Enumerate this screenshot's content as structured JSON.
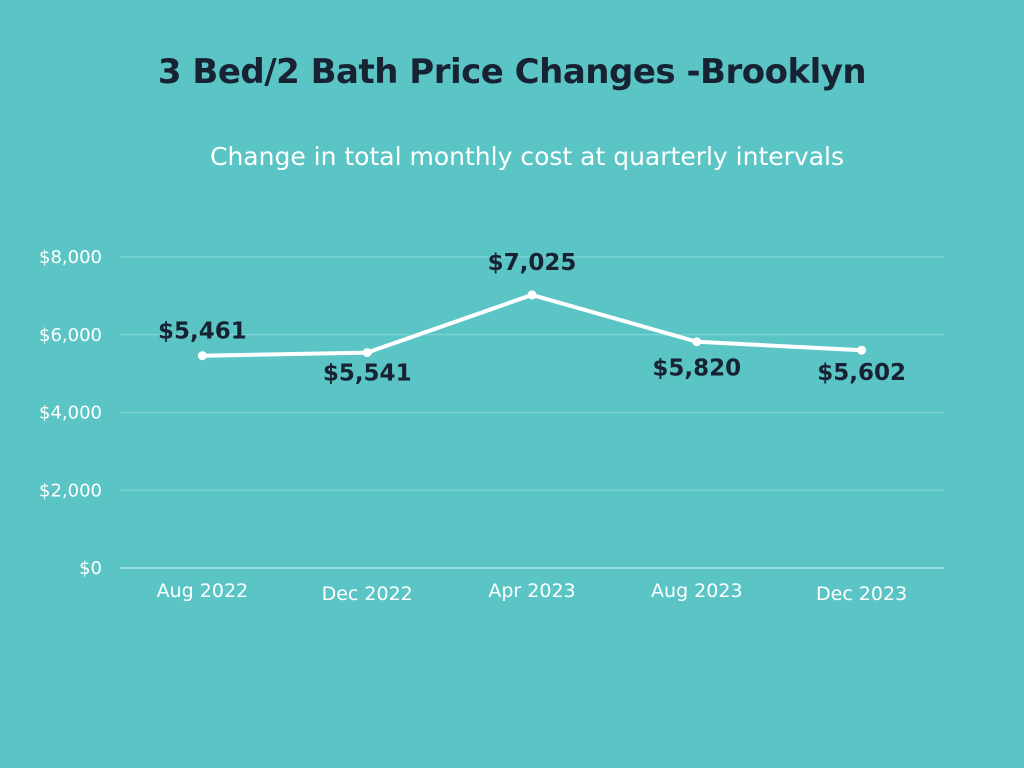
{
  "chart_data": {
    "type": "line",
    "title": "3 Bed/2 Bath Price Changes -Brooklyn",
    "subtitle": "Change in total monthly cost at quarterly intervals",
    "categories": [
      "Aug 2022",
      "Dec 2022",
      "Apr 2023",
      "Aug 2023",
      "Dec 2023"
    ],
    "series": [
      {
        "values": [
          5461,
          5541,
          7025,
          5820,
          5602
        ]
      }
    ],
    "data_labels": [
      "$5,461",
      "$5,541",
      "$7,025",
      "$5,820",
      "$5,602"
    ],
    "yticks": [
      0,
      2000,
      4000,
      6000,
      8000
    ],
    "ytick_labels": [
      "$0",
      "$2,000",
      "$4,000",
      "$6,000",
      "$8,000"
    ],
    "ylim": [
      0,
      8000
    ],
    "grid": true,
    "colors": {
      "background": "#5bc5c6",
      "line": "#ffffff",
      "gridline": "#8ad6d6",
      "title": "#172233",
      "data_label": "#172233",
      "tick_text": "#ffffff"
    }
  }
}
